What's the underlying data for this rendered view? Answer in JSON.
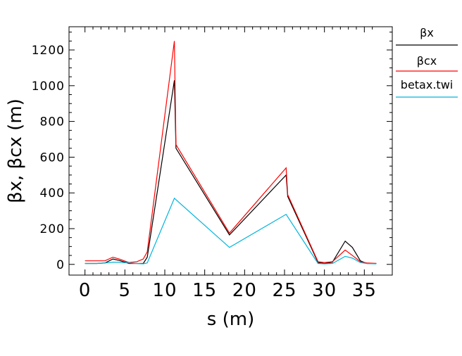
{
  "chart_data": {
    "type": "line",
    "xlabel": "s  (m)",
    "ylabel": "βx, βcx  (m)",
    "xlim": [
      -2.0,
      38.5
    ],
    "ylim": [
      -60,
      1330
    ],
    "xticks": [
      0,
      5,
      10,
      15,
      20,
      25,
      30,
      35
    ],
    "xtick_labels": [
      "0",
      "5",
      "10",
      "15",
      "20",
      "25",
      "30",
      "35"
    ],
    "yticks": [
      0,
      200,
      400,
      600,
      800,
      1000,
      1200
    ],
    "ytick_labels": [
      "0",
      "200",
      "400",
      "600",
      "800",
      "1000",
      "1200"
    ],
    "grid": false,
    "legend_position": "right",
    "series": [
      {
        "name": "βx",
        "color": "#000000",
        "x": [
          0,
          1.5,
          2.5,
          3.5,
          4.3,
          5.5,
          6.5,
          7.3,
          7.8,
          11.2,
          11.4,
          18.1,
          25.2,
          25.4,
          29.2,
          30.0,
          31.0,
          32.6,
          33.5,
          34.5,
          35.3,
          36.5
        ],
        "y": [
          5,
          5,
          8,
          30,
          22,
          5,
          5,
          5,
          40,
          1030,
          650,
          165,
          500,
          380,
          10,
          5,
          12,
          130,
          95,
          20,
          5,
          5
        ]
      },
      {
        "name": "βcx",
        "color": "#ff0000",
        "x": [
          0,
          1.5,
          2.5,
          3.5,
          4.3,
          5.5,
          6.5,
          7.3,
          7.8,
          11.2,
          11.4,
          18.1,
          25.2,
          25.4,
          29.2,
          30.0,
          31.0,
          32.6,
          33.5,
          34.5,
          35.3,
          36.5
        ],
        "y": [
          20,
          20,
          20,
          40,
          30,
          10,
          15,
          30,
          70,
          1250,
          670,
          175,
          540,
          390,
          15,
          10,
          15,
          80,
          50,
          15,
          8,
          5
        ]
      },
      {
        "name": "betax.twi",
        "color": "#00b4dc",
        "x": [
          0,
          1.5,
          2.5,
          3.5,
          4.3,
          5.5,
          6.5,
          7.3,
          7.8,
          11.2,
          18.1,
          25.2,
          29.2,
          30.0,
          31.0,
          32.6,
          33.5,
          34.5,
          35.3,
          36.5
        ],
        "y": [
          5,
          5,
          8,
          12,
          12,
          8,
          5,
          3,
          8,
          370,
          95,
          280,
          5,
          3,
          5,
          45,
          35,
          10,
          5,
          3
        ]
      }
    ],
    "legend": [
      {
        "label": "βx",
        "series": 0
      },
      {
        "label": "βcx",
        "series": 1
      },
      {
        "label": "betax.twi",
        "series": 2
      }
    ]
  }
}
